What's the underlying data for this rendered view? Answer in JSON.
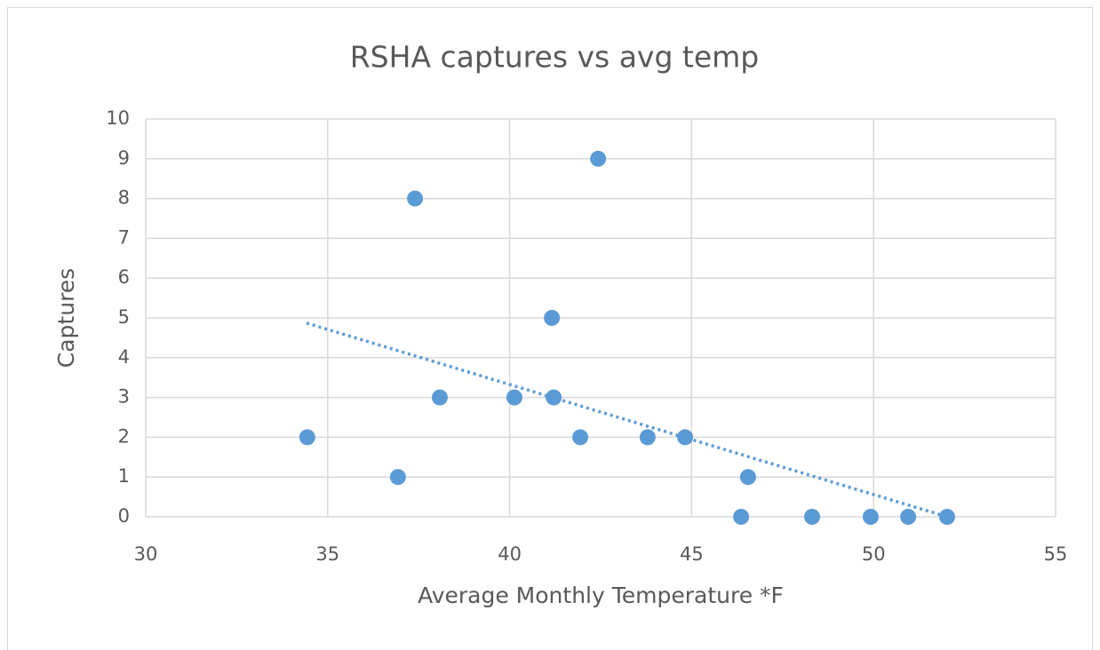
{
  "chart_data": {
    "type": "scatter",
    "title": "RSHA captures vs avg temp",
    "x_label": "Average Monthly Temperature *F",
    "y_label": "Captures",
    "series": [
      {
        "name": "Captures",
        "color": "#5b9bd5",
        "x": [
          34.44,
          36.93,
          37.4,
          38.08,
          40.13,
          41.16,
          41.21,
          41.94,
          42.43,
          43.79,
          44.82,
          46.55,
          46.36,
          48.31,
          49.92,
          50.95,
          52.02
        ],
        "values": [
          2,
          1,
          8,
          3,
          3,
          5,
          3,
          2,
          9,
          2,
          2,
          1,
          0,
          0,
          0,
          0,
          0
        ]
      }
    ],
    "trendline": {
      "color": "#5b9bd5",
      "x": [
        34.42,
        52.02
      ],
      "values": [
        4.87,
        0
      ]
    },
    "xlim": [
      30,
      55
    ],
    "xticks": [
      30,
      35,
      40,
      45,
      50,
      55
    ],
    "ylim": [
      0,
      10
    ],
    "yticks": [
      0,
      1,
      2,
      3,
      4,
      5,
      6,
      7,
      8,
      9,
      10
    ],
    "grid": true
  }
}
